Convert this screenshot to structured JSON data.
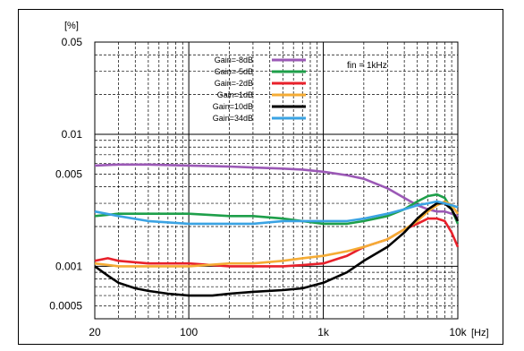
{
  "chart_data": {
    "type": "line",
    "x_scale": "log",
    "y_scale": "log",
    "xlim": [
      20,
      10000
    ],
    "ylim": [
      0.0004,
      0.05
    ],
    "grid": true,
    "y_unit": "[%]",
    "x_unit": "[Hz]",
    "x_ticks": [
      {
        "value": 20,
        "label": "20"
      },
      {
        "value": 100,
        "label": "100"
      },
      {
        "value": 1000,
        "label": "1k"
      },
      {
        "value": 10000,
        "label": "10k"
      }
    ],
    "y_ticks": [
      {
        "value": 0.05,
        "label": "0.05"
      },
      {
        "value": 0.01,
        "label": "0.01"
      },
      {
        "value": 0.005,
        "label": "0.005"
      },
      {
        "value": 0.001,
        "label": "0.001"
      },
      {
        "value": 0.0005,
        "label": "0.0005"
      }
    ],
    "annotation": "fin = 1kHz",
    "legend_position": "top-center",
    "series": [
      {
        "name": "Gain=-8dB",
        "color": "#9b59b6",
        "points": [
          [
            20,
            0.0058
          ],
          [
            30,
            0.0059
          ],
          [
            50,
            0.0059
          ],
          [
            100,
            0.0058
          ],
          [
            200,
            0.0057
          ],
          [
            300,
            0.0056
          ],
          [
            500,
            0.0055
          ],
          [
            700,
            0.0054
          ],
          [
            1000,
            0.0052
          ],
          [
            1500,
            0.0049
          ],
          [
            2000,
            0.0046
          ],
          [
            3000,
            0.0039
          ],
          [
            4000,
            0.0033
          ],
          [
            5000,
            0.0029
          ],
          [
            6000,
            0.0027
          ],
          [
            7000,
            0.0026
          ],
          [
            8000,
            0.0026
          ],
          [
            9000,
            0.0025
          ],
          [
            10000,
            0.0024
          ]
        ]
      },
      {
        "name": "Gain=-5dB",
        "color": "#1e9f4a",
        "points": [
          [
            20,
            0.0024
          ],
          [
            30,
            0.0025
          ],
          [
            50,
            0.0025
          ],
          [
            100,
            0.0025
          ],
          [
            200,
            0.0024
          ],
          [
            300,
            0.0024
          ],
          [
            500,
            0.0023
          ],
          [
            700,
            0.0022
          ],
          [
            1000,
            0.0021
          ],
          [
            1500,
            0.0021
          ],
          [
            2000,
            0.0022
          ],
          [
            3000,
            0.0024
          ],
          [
            4000,
            0.0027
          ],
          [
            5000,
            0.0031
          ],
          [
            6000,
            0.0034
          ],
          [
            7000,
            0.0035
          ],
          [
            8000,
            0.0033
          ],
          [
            9000,
            0.0027
          ],
          [
            10000,
            0.0021
          ]
        ]
      },
      {
        "name": "Gain=-2dB",
        "color": "#e8212b",
        "points": [
          [
            20,
            0.0011
          ],
          [
            25,
            0.00115
          ],
          [
            30,
            0.0011
          ],
          [
            50,
            0.00105
          ],
          [
            100,
            0.00105
          ],
          [
            200,
            0.001
          ],
          [
            300,
            0.001
          ],
          [
            500,
            0.001
          ],
          [
            700,
            0.00102
          ],
          [
            1000,
            0.00105
          ],
          [
            1500,
            0.0012
          ],
          [
            2000,
            0.0014
          ],
          [
            3000,
            0.0016
          ],
          [
            4000,
            0.0019
          ],
          [
            5000,
            0.0021
          ],
          [
            6000,
            0.0023
          ],
          [
            7000,
            0.0023
          ],
          [
            8000,
            0.0022
          ],
          [
            9000,
            0.0018
          ],
          [
            10000,
            0.0014
          ]
        ]
      },
      {
        "name": "Gain=1dB",
        "color": "#f5ac35",
        "points": [
          [
            20,
            0.00105
          ],
          [
            30,
            0.001
          ],
          [
            50,
            0.001
          ],
          [
            100,
            0.001
          ],
          [
            200,
            0.00105
          ],
          [
            300,
            0.00105
          ],
          [
            500,
            0.0011
          ],
          [
            700,
            0.00115
          ],
          [
            1000,
            0.0012
          ],
          [
            1500,
            0.0013
          ],
          [
            2000,
            0.0014
          ],
          [
            3000,
            0.0016
          ],
          [
            4000,
            0.0019
          ],
          [
            5000,
            0.0022
          ],
          [
            6000,
            0.0026
          ],
          [
            7000,
            0.0029
          ],
          [
            8000,
            0.0031
          ],
          [
            9000,
            0.0029
          ],
          [
            10000,
            0.0025
          ]
        ]
      },
      {
        "name": "Gain=10dB",
        "color": "#000000",
        "points": [
          [
            20,
            0.001
          ],
          [
            25,
            0.00085
          ],
          [
            30,
            0.00075
          ],
          [
            40,
            0.00068
          ],
          [
            50,
            0.00065
          ],
          [
            70,
            0.00062
          ],
          [
            100,
            0.0006
          ],
          [
            150,
            0.0006
          ],
          [
            200,
            0.00062
          ],
          [
            300,
            0.00064
          ],
          [
            500,
            0.00066
          ],
          [
            700,
            0.00068
          ],
          [
            1000,
            0.00075
          ],
          [
            1500,
            0.0009
          ],
          [
            2000,
            0.0011
          ],
          [
            3000,
            0.0014
          ],
          [
            4000,
            0.0018
          ],
          [
            5000,
            0.0023
          ],
          [
            6000,
            0.0027
          ],
          [
            7000,
            0.003
          ],
          [
            8000,
            0.003
          ],
          [
            9000,
            0.0027
          ],
          [
            10000,
            0.0022
          ]
        ]
      },
      {
        "name": "Gain=34dB",
        "color": "#3aa3e3",
        "points": [
          [
            20,
            0.0026
          ],
          [
            30,
            0.0024
          ],
          [
            50,
            0.0022
          ],
          [
            100,
            0.0021
          ],
          [
            200,
            0.0021
          ],
          [
            300,
            0.0021
          ],
          [
            500,
            0.0022
          ],
          [
            700,
            0.0022
          ],
          [
            1000,
            0.0022
          ],
          [
            1500,
            0.0022
          ],
          [
            2000,
            0.0023
          ],
          [
            3000,
            0.0025
          ],
          [
            4000,
            0.0027
          ],
          [
            5000,
            0.0029
          ],
          [
            6000,
            0.003
          ],
          [
            7000,
            0.0031
          ],
          [
            8000,
            0.003
          ],
          [
            9000,
            0.0029
          ],
          [
            10000,
            0.0028
          ]
        ]
      }
    ]
  }
}
